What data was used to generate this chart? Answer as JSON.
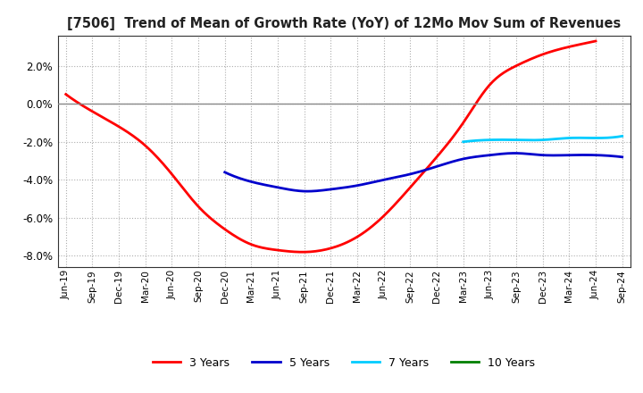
{
  "title": "[7506]  Trend of Mean of Growth Rate (YoY) of 12Mo Mov Sum of Revenues",
  "ylim": [
    -0.086,
    0.036
  ],
  "yticks": [
    -0.08,
    -0.06,
    -0.04,
    -0.02,
    0.0,
    0.02
  ],
  "background_color": "#ffffff",
  "grid_color": "#999999",
  "series": {
    "3years": {
      "color": "#ff0000",
      "label": "3 Years",
      "x": [
        0,
        1,
        2,
        3,
        4,
        5,
        6,
        7,
        8,
        9,
        10,
        11,
        12,
        13,
        14,
        15,
        16,
        17,
        18,
        19,
        20
      ],
      "y": [
        0.005,
        -0.004,
        -0.012,
        -0.022,
        -0.037,
        -0.054,
        -0.066,
        -0.074,
        -0.077,
        -0.078,
        -0.076,
        -0.07,
        -0.059,
        -0.044,
        -0.028,
        -0.01,
        0.01,
        0.02,
        0.026,
        0.03,
        0.033
      ]
    },
    "5years": {
      "color": "#0000cc",
      "label": "5 Years",
      "x": [
        6,
        7,
        8,
        9,
        10,
        11,
        12,
        13,
        14,
        15,
        16,
        17,
        18,
        19,
        20,
        21
      ],
      "y": [
        -0.036,
        -0.041,
        -0.044,
        -0.046,
        -0.045,
        -0.043,
        -0.04,
        -0.037,
        -0.033,
        -0.029,
        -0.027,
        -0.026,
        -0.027,
        -0.027,
        -0.027,
        -0.028
      ]
    },
    "7years": {
      "color": "#00ccff",
      "label": "7 Years",
      "x": [
        15,
        16,
        17,
        18,
        19,
        20,
        21
      ],
      "y": [
        -0.02,
        -0.019,
        -0.019,
        -0.019,
        -0.018,
        -0.018,
        -0.017
      ]
    },
    "10years": {
      "color": "#008000",
      "label": "10 Years",
      "x": [],
      "y": []
    }
  },
  "xtick_labels": [
    "Jun-19",
    "Sep-19",
    "Dec-19",
    "Mar-20",
    "Jun-20",
    "Sep-20",
    "Dec-20",
    "Mar-21",
    "Jun-21",
    "Sep-21",
    "Dec-21",
    "Mar-22",
    "Jun-22",
    "Sep-22",
    "Dec-22",
    "Mar-23",
    "Jun-23",
    "Sep-23",
    "Dec-23",
    "Mar-24",
    "Jun-24",
    "Sep-24"
  ]
}
